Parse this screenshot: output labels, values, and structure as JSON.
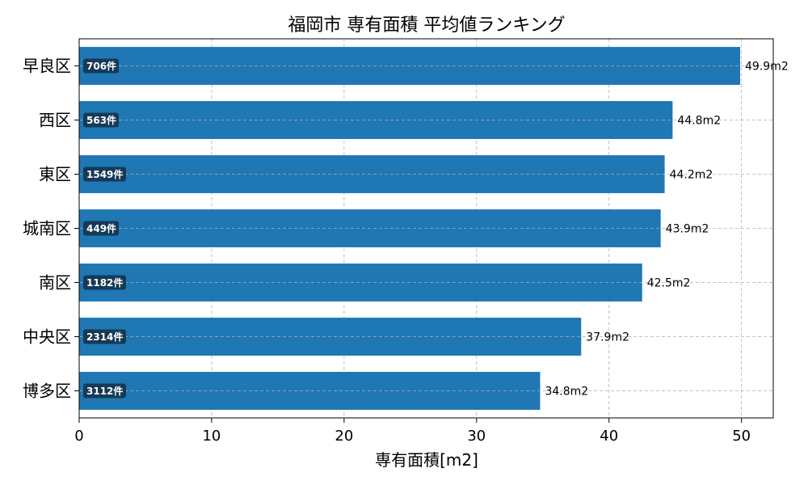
{
  "chart_data": {
    "type": "bar",
    "orientation": "horizontal",
    "title": "福岡市 専有面積 平均値ランキング",
    "xlabel": "専有面積[m2]",
    "ylabel": "",
    "xlim": [
      0,
      52.4
    ],
    "xticks": [
      0,
      10,
      20,
      30,
      40,
      50
    ],
    "categories": [
      "早良区",
      "西区",
      "東区",
      "城南区",
      "南区",
      "中央区",
      "博多区"
    ],
    "values": [
      49.9,
      44.8,
      44.2,
      43.9,
      42.5,
      37.9,
      34.8
    ],
    "value_labels": [
      "49.9m2",
      "44.8m2",
      "44.2m2",
      "43.9m2",
      "42.5m2",
      "37.9m2",
      "34.8m2"
    ],
    "counts": [
      706,
      563,
      1549,
      449,
      1182,
      2314,
      3112
    ],
    "count_labels": [
      "706件",
      "563件",
      "1549件",
      "449件",
      "1182件",
      "2314件",
      "3112件"
    ],
    "grid": true,
    "bar_color": "#1f77b4",
    "badge_color": "#163a56"
  }
}
